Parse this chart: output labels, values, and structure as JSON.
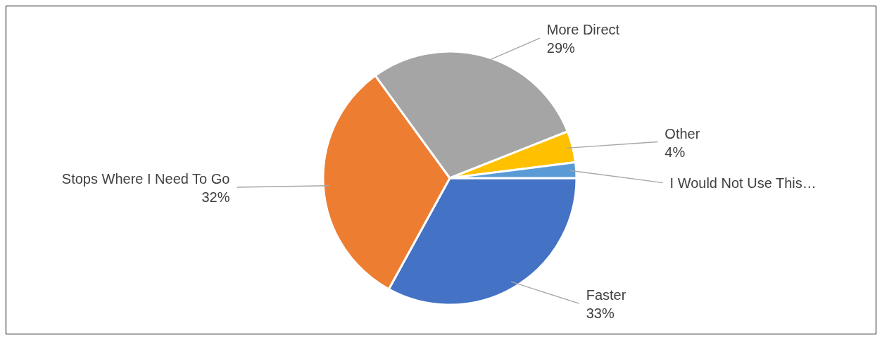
{
  "chart_data": {
    "type": "pie",
    "categories": [
      "Faster",
      "Stops Where I Need To Go",
      "More Direct",
      "Other",
      "I Would Not Use This…"
    ],
    "values": [
      33,
      32,
      29,
      4,
      2
    ],
    "colors": [
      "#4472c4",
      "#ed7d31",
      "#a5a5a5",
      "#ffc000",
      "#5b9bd5"
    ],
    "value_labels": [
      "33%",
      "32%",
      "29%",
      "4%",
      null
    ],
    "legend": false
  }
}
